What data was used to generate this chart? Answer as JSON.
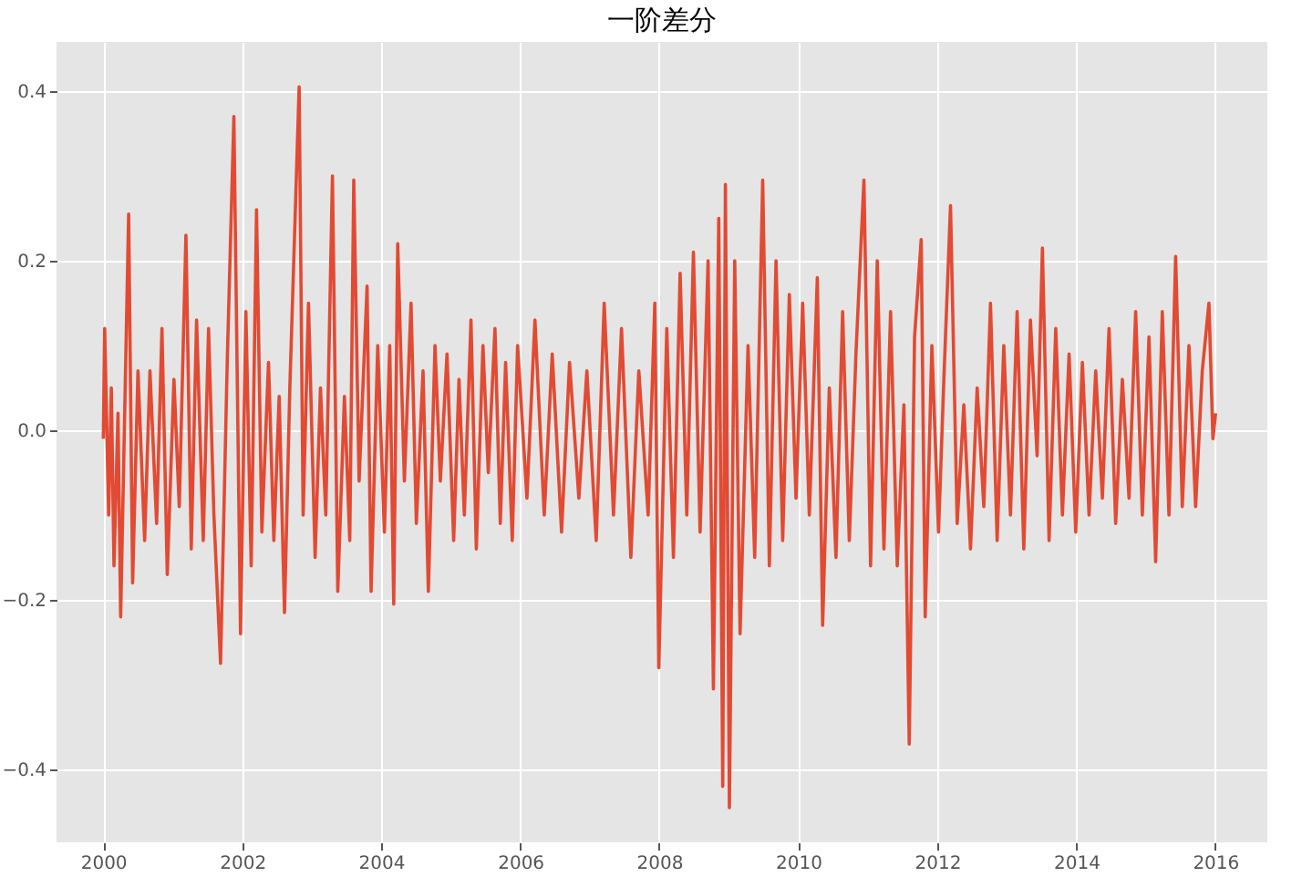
{
  "chart_data": {
    "type": "line",
    "title": "一阶差分",
    "x": [
      "2000-01-02",
      "2000-01-09",
      "2000-01-30",
      "2000-02-13",
      "2000-02-27",
      "2000-03-19",
      "2000-04-02",
      "2000-05-14",
      "2000-06-04",
      "2000-07-02",
      "2000-08-06",
      "2000-09-03",
      "2000-10-08",
      "2000-11-05",
      "2000-12-03",
      "2001-01-07",
      "2001-02-04",
      "2001-03-11",
      "2001-04-08",
      "2001-05-06",
      "2001-06-10",
      "2001-07-08",
      "2001-08-05",
      "2001-09-09",
      "2001-10-14",
      "2001-11-18",
      "2001-12-23",
      "2002-01-20",
      "2002-02-17",
      "2002-03-17",
      "2002-04-14",
      "2002-05-19",
      "2002-06-16",
      "2002-07-14",
      "2002-08-11",
      "2002-09-08",
      "2002-10-27",
      "2002-11-17",
      "2002-12-15",
      "2003-01-19",
      "2003-02-16",
      "2003-03-16",
      "2003-04-20",
      "2003-05-18",
      "2003-06-22",
      "2003-07-20",
      "2003-08-10",
      "2003-09-07",
      "2003-10-19",
      "2003-11-09",
      "2003-12-14",
      "2004-01-18",
      "2004-02-15",
      "2004-03-07",
      "2004-03-28",
      "2004-05-02",
      "2004-06-06",
      "2004-07-04",
      "2004-08-08",
      "2004-09-05",
      "2004-10-10",
      "2004-11-07",
      "2004-12-12",
      "2005-01-16",
      "2005-02-13",
      "2005-03-13",
      "2005-04-17",
      "2005-05-15",
      "2005-06-19",
      "2005-07-17",
      "2005-08-21",
      "2005-09-18",
      "2005-10-16",
      "2005-11-20",
      "2005-12-18",
      "2006-02-05",
      "2006-03-19",
      "2006-05-07",
      "2006-06-18",
      "2006-08-06",
      "2006-09-17",
      "2006-11-05",
      "2006-12-17",
      "2007-02-04",
      "2007-03-18",
      "2007-05-06",
      "2007-06-17",
      "2007-08-05",
      "2007-09-16",
      "2007-11-04",
      "2007-12-09",
      "2007-12-30",
      "2008-02-10",
      "2008-03-16",
      "2008-04-20",
      "2008-05-25",
      "2008-06-29",
      "2008-08-03",
      "2008-09-14",
      "2008-10-12",
      "2008-11-09",
      "2008-11-30",
      "2008-12-14",
      "2009-01-04",
      "2009-02-01",
      "2009-03-01",
      "2009-04-12",
      "2009-05-17",
      "2009-06-28",
      "2009-08-02",
      "2009-09-06",
      "2009-10-11",
      "2009-11-15",
      "2009-12-20",
      "2010-01-24",
      "2010-02-28",
      "2010-04-11",
      "2010-05-09",
      "2010-06-13",
      "2010-07-18",
      "2010-08-22",
      "2010-09-26",
      "2010-10-31",
      "2010-12-12",
      "2011-01-16",
      "2011-02-20",
      "2011-03-27",
      "2011-05-01",
      "2011-06-05",
      "2011-07-10",
      "2011-08-07",
      "2011-09-04",
      "2011-10-09",
      "2011-10-30",
      "2011-12-04",
      "2012-01-08",
      "2012-02-05",
      "2012-03-11",
      "2012-04-15",
      "2012-05-20",
      "2012-06-24",
      "2012-07-29",
      "2012-09-02",
      "2012-10-07",
      "2012-11-11",
      "2012-12-16",
      "2013-01-20",
      "2013-02-24",
      "2013-03-31",
      "2013-05-05",
      "2013-06-09",
      "2013-07-07",
      "2013-08-11",
      "2013-09-15",
      "2013-10-20",
      "2013-11-24",
      "2013-12-29",
      "2014-02-02",
      "2014-03-09",
      "2014-04-13",
      "2014-05-18",
      "2014-06-22",
      "2014-07-27",
      "2014-08-31",
      "2014-10-05",
      "2014-11-09",
      "2014-12-14",
      "2015-01-18",
      "2015-02-22",
      "2015-03-29",
      "2015-05-03",
      "2015-06-07",
      "2015-07-12",
      "2015-08-16",
      "2015-09-20",
      "2015-10-25",
      "2015-11-29",
      "2015-12-20",
      "2016-01-03"
    ],
    "series": [
      {
        "color": "#e24a33",
        "values": [
          -0.01,
          0.12,
          -0.1,
          0.05,
          -0.16,
          0.02,
          -0.22,
          0.255,
          -0.18,
          0.07,
          -0.13,
          0.07,
          -0.11,
          0.12,
          -0.17,
          0.06,
          -0.09,
          0.23,
          -0.14,
          0.13,
          -0.13,
          0.12,
          -0.1,
          -0.275,
          0.08,
          0.37,
          -0.24,
          0.14,
          -0.16,
          0.26,
          -0.12,
          0.08,
          -0.13,
          0.04,
          -0.215,
          0.05,
          0.405,
          -0.1,
          0.15,
          -0.15,
          0.05,
          -0.1,
          0.3,
          -0.19,
          0.04,
          -0.13,
          0.295,
          -0.06,
          0.17,
          -0.19,
          0.1,
          -0.12,
          0.1,
          -0.205,
          0.22,
          -0.06,
          0.15,
          -0.11,
          0.07,
          -0.19,
          0.1,
          -0.06,
          0.09,
          -0.13,
          0.06,
          -0.1,
          0.13,
          -0.14,
          0.1,
          -0.05,
          0.12,
          -0.11,
          0.08,
          -0.13,
          0.1,
          -0.08,
          0.13,
          -0.1,
          0.09,
          -0.12,
          0.08,
          -0.08,
          0.07,
          -0.13,
          0.15,
          -0.1,
          0.12,
          -0.15,
          0.07,
          -0.1,
          0.15,
          -0.28,
          0.12,
          -0.15,
          0.185,
          -0.1,
          0.21,
          -0.12,
          0.2,
          -0.305,
          0.25,
          -0.42,
          0.29,
          -0.445,
          0.2,
          -0.24,
          0.1,
          -0.15,
          0.295,
          -0.16,
          0.2,
          -0.13,
          0.16,
          -0.08,
          0.15,
          -0.1,
          0.18,
          -0.23,
          0.05,
          -0.15,
          0.14,
          -0.13,
          0.09,
          0.295,
          -0.16,
          0.2,
          -0.14,
          0.14,
          -0.16,
          0.03,
          -0.37,
          0.11,
          0.225,
          -0.22,
          0.1,
          -0.12,
          0.06,
          0.265,
          -0.11,
          0.03,
          -0.14,
          0.05,
          -0.09,
          0.15,
          -0.13,
          0.1,
          -0.1,
          0.14,
          -0.14,
          0.13,
          -0.03,
          0.215,
          -0.13,
          0.12,
          -0.1,
          0.09,
          -0.12,
          0.08,
          -0.1,
          0.07,
          -0.08,
          0.12,
          -0.11,
          0.06,
          -0.08,
          0.14,
          -0.1,
          0.11,
          -0.155,
          0.14,
          -0.1,
          0.205,
          -0.09,
          0.1,
          -0.09,
          0.07,
          0.15,
          -0.01,
          0.02
        ]
      }
    ],
    "xlim": [
      "1999-05",
      "2016-10"
    ],
    "xticks": [
      "2000",
      "2002",
      "2004",
      "2006",
      "2008",
      "2010",
      "2012",
      "2014",
      "2016"
    ],
    "ylim": [
      -0.486,
      0.458
    ],
    "yticks": [
      {
        "value": -0.4,
        "label": "−0.4"
      },
      {
        "value": -0.2,
        "label": "−0.2"
      },
      {
        "value": 0,
        "label": "0.0"
      },
      {
        "value": 0.2,
        "label": "0.2"
      },
      {
        "value": 0.4,
        "label": "0.4"
      }
    ],
    "grid": true,
    "line_style": "solid",
    "marker": "none"
  }
}
